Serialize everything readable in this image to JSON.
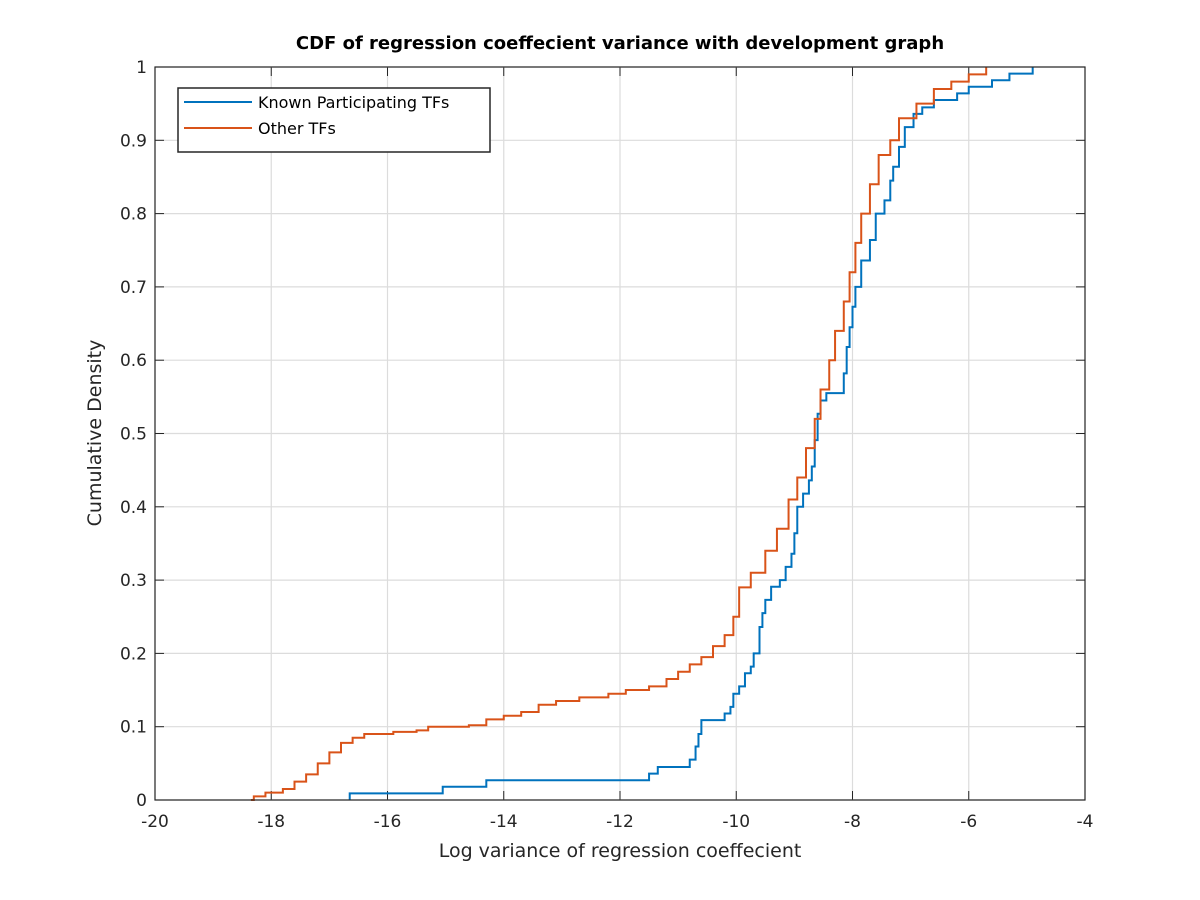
{
  "chart_data": {
    "type": "stairs",
    "title": "CDF of regression coeffecient variance with development graph",
    "x_label": "Log variance of regression coeffecient",
    "y_label": "Cumulative Density",
    "xlim": [
      -20,
      -4
    ],
    "ylim": [
      0,
      1
    ],
    "xticks": [
      -20,
      -18,
      -16,
      -14,
      -12,
      -10,
      -8,
      -6,
      -4
    ],
    "yticks": [
      0,
      0.1,
      0.2,
      0.3,
      0.4,
      0.5,
      0.6,
      0.7,
      0.8,
      0.9,
      1
    ],
    "grid": true,
    "legend_position": "upper-left",
    "series": [
      {
        "name": "Known Participating TFs",
        "color": "#0072bd",
        "x": [
          -16.65,
          -16.65,
          -15.05,
          -14.3,
          -11.5,
          -11.35,
          -10.8,
          -10.7,
          -10.65,
          -10.6,
          -10.2,
          -10.1,
          -10.05,
          -9.95,
          -9.85,
          -9.75,
          -9.7,
          -9.6,
          -9.55,
          -9.5,
          -9.4,
          -9.25,
          -9.15,
          -9.05,
          -9.0,
          -8.95,
          -8.85,
          -8.75,
          -8.7,
          -8.65,
          -8.6,
          -8.55,
          -8.45,
          -8.15,
          -8.1,
          -8.05,
          -8.0,
          -7.95,
          -7.85,
          -7.7,
          -7.6,
          -7.45,
          -7.35,
          -7.3,
          -7.2,
          -7.1,
          -6.95,
          -6.8,
          -6.6,
          -6.2,
          -6.0,
          -5.6,
          -5.3,
          -4.9
        ],
        "values": [
          0,
          0.009,
          0.018,
          0.027,
          0.036,
          0.045,
          0.055,
          0.073,
          0.09,
          0.109,
          0.118,
          0.127,
          0.145,
          0.155,
          0.173,
          0.182,
          0.2,
          0.236,
          0.255,
          0.273,
          0.291,
          0.3,
          0.318,
          0.336,
          0.364,
          0.4,
          0.418,
          0.436,
          0.455,
          0.491,
          0.527,
          0.545,
          0.555,
          0.582,
          0.618,
          0.645,
          0.673,
          0.7,
          0.736,
          0.764,
          0.8,
          0.818,
          0.845,
          0.864,
          0.891,
          0.918,
          0.936,
          0.945,
          0.955,
          0.964,
          0.973,
          0.982,
          0.991,
          1.0
        ]
      },
      {
        "name": "Other TFs",
        "color": "#d95319",
        "x": [
          -18.35,
          -18.3,
          -18.1,
          -17.8,
          -17.6,
          -17.4,
          -17.2,
          -17.0,
          -16.8,
          -16.6,
          -16.4,
          -15.9,
          -15.5,
          -15.3,
          -14.6,
          -14.3,
          -14.0,
          -13.7,
          -13.4,
          -13.1,
          -12.7,
          -12.2,
          -11.9,
          -11.5,
          -11.2,
          -11.0,
          -10.8,
          -10.6,
          -10.4,
          -10.2,
          -10.05,
          -9.95,
          -9.75,
          -9.5,
          -9.3,
          -9.1,
          -8.95,
          -8.8,
          -8.65,
          -8.55,
          -8.4,
          -8.3,
          -8.15,
          -8.05,
          -7.95,
          -7.85,
          -7.7,
          -7.55,
          -7.35,
          -7.2,
          -6.9,
          -6.6,
          -6.3,
          -6.0,
          -5.7
        ],
        "values": [
          0,
          0.005,
          0.01,
          0.015,
          0.025,
          0.035,
          0.05,
          0.065,
          0.078,
          0.085,
          0.09,
          0.093,
          0.095,
          0.1,
          0.102,
          0.11,
          0.115,
          0.12,
          0.13,
          0.135,
          0.14,
          0.145,
          0.15,
          0.155,
          0.165,
          0.175,
          0.185,
          0.195,
          0.21,
          0.225,
          0.25,
          0.29,
          0.31,
          0.34,
          0.37,
          0.41,
          0.44,
          0.48,
          0.52,
          0.56,
          0.6,
          0.64,
          0.68,
          0.72,
          0.76,
          0.8,
          0.84,
          0.88,
          0.9,
          0.93,
          0.95,
          0.97,
          0.98,
          0.99,
          1.0
        ]
      }
    ]
  }
}
